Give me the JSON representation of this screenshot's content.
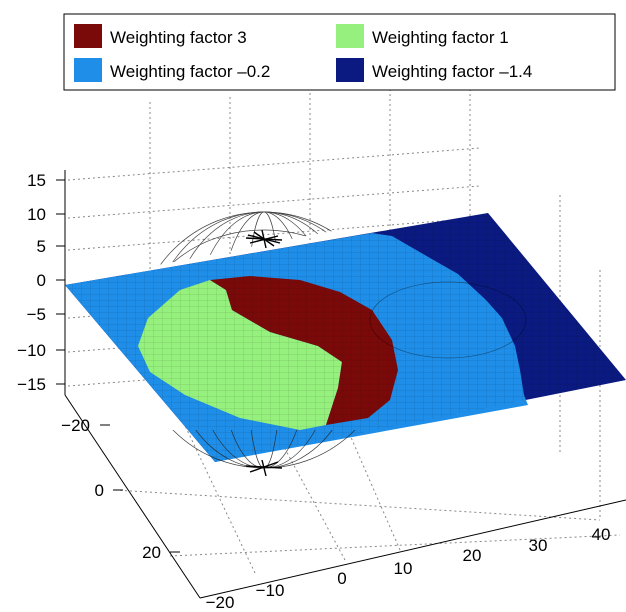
{
  "chart_data": {
    "type": "surface",
    "title": "",
    "legend": {
      "placement": "top",
      "entries": [
        {
          "label": "Weighting factor 3",
          "color": "#7a0a0a",
          "value": 3
        },
        {
          "label": "Weighting factor 1",
          "color": "#96f07d",
          "value": 1
        },
        {
          "label": "Weighting factor –0.2",
          "color": "#1e8ee8",
          "value": -0.2
        },
        {
          "label": "Weighting factor –1.4",
          "color": "#0a1a80",
          "value": -1.4
        }
      ]
    },
    "axes": {
      "x": {
        "ticks": [
          "−20",
          "−10",
          "0",
          "10",
          "20",
          "30",
          "40"
        ],
        "range": [
          -20,
          45
        ]
      },
      "y": {
        "ticks": [
          "−20",
          "0",
          "20"
        ],
        "range": [
          -25,
          30
        ]
      },
      "z": {
        "ticks": [
          "15",
          "10",
          "5",
          "0",
          "−5",
          "−10",
          "−15"
        ],
        "range": [
          -15,
          15
        ]
      }
    },
    "grid": true,
    "plane": {
      "z": 0,
      "x_range": [
        -20,
        45
      ],
      "y_range": [
        -25,
        30
      ]
    },
    "sphere": {
      "center": [
        0,
        0,
        0
      ],
      "radius": 15,
      "style": "wireframe"
    },
    "regions": [
      {
        "name": "Weighting factor 3",
        "shape": "ring",
        "center": [
          0,
          0
        ],
        "inner_radius": 9,
        "outer_radius": 15,
        "value": 3
      },
      {
        "name": "Weighting factor 1",
        "shape": "disc",
        "center": [
          0,
          0
        ],
        "radius": 9,
        "value": 1
      },
      {
        "name": "Weighting factor –0.2",
        "shape": "ring",
        "center": [
          0,
          0
        ],
        "inner_radius": 15,
        "outer_radius": 33,
        "value": -0.2
      },
      {
        "name": "Weighting factor –1.4",
        "shape": "outside",
        "center": [
          0,
          0
        ],
        "radius": 33,
        "value": -1.4
      }
    ]
  }
}
